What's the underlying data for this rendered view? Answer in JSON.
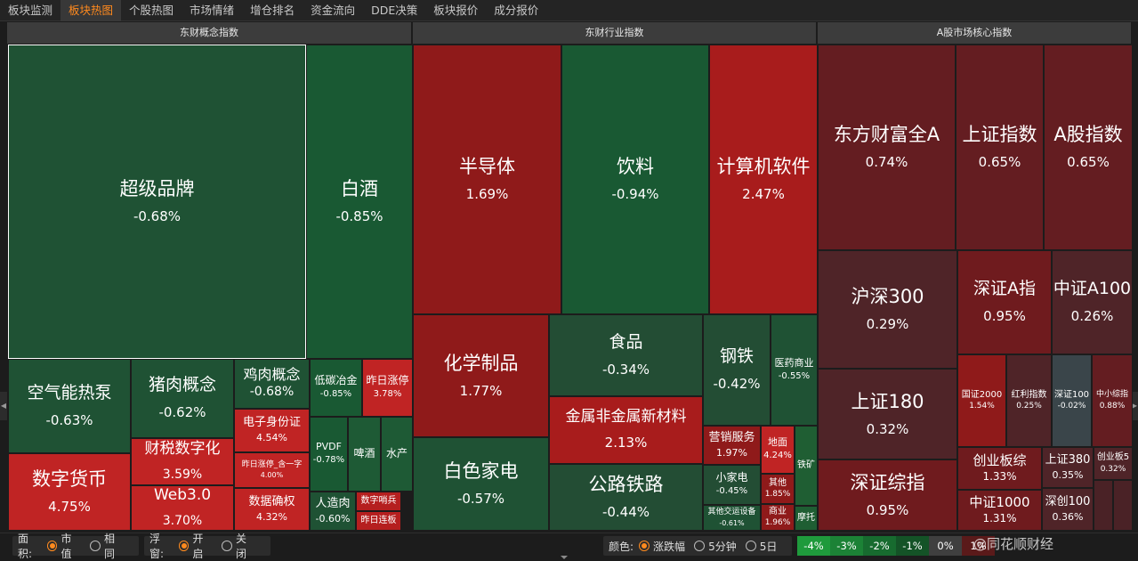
{
  "tabs": [
    {
      "label": "板块监测",
      "active": false
    },
    {
      "label": "板块热图",
      "active": true
    },
    {
      "label": "个股热图",
      "active": false
    },
    {
      "label": "市场情绪",
      "active": false
    },
    {
      "label": "增仓排名",
      "active": false
    },
    {
      "label": "资金流向",
      "active": false
    },
    {
      "label": "DDE决策",
      "active": false
    },
    {
      "label": "板块报价",
      "active": false
    },
    {
      "label": "成分报价",
      "active": false
    }
  ],
  "sections": {
    "concept": "东财概念指数",
    "industry": "东财行业指数",
    "market": "A股市场核心指数"
  },
  "tiles": {
    "concept": [
      {
        "name": "超级品牌",
        "pct": "-0.68%"
      },
      {
        "name": "白酒",
        "pct": "-0.85%"
      },
      {
        "name": "空气能热泵",
        "pct": "-0.63%"
      },
      {
        "name": "猪肉概念",
        "pct": "-0.62%"
      },
      {
        "name": "鸡肉概念",
        "pct": "-0.68%"
      },
      {
        "name": "低碳冶金",
        "pct": "-0.85%"
      },
      {
        "name": "昨日涨停",
        "pct": "3.78%"
      },
      {
        "name": "电子身份证",
        "pct": "4.54%"
      },
      {
        "name": "数字货币",
        "pct": "4.75%"
      },
      {
        "name": "财税数字化",
        "pct": "3.59%"
      },
      {
        "name": "Web3.0",
        "pct": "3.70%"
      },
      {
        "name": "昨日涨停_含一字",
        "pct": "4.00%"
      },
      {
        "name": "数据确权",
        "pct": "4.32%"
      },
      {
        "name": "PVDF",
        "pct": "-0.78%"
      },
      {
        "name": "啤酒",
        "pct": ""
      },
      {
        "name": "水产",
        "pct": ""
      },
      {
        "name": "人造肉",
        "pct": "-0.60%"
      },
      {
        "name": "数字哨兵",
        "pct": ""
      },
      {
        "name": "昨日连板",
        "pct": ""
      }
    ],
    "industry": [
      {
        "name": "半导体",
        "pct": "1.69%"
      },
      {
        "name": "饮料",
        "pct": "-0.94%"
      },
      {
        "name": "计算机软件",
        "pct": "2.47%"
      },
      {
        "name": "化学制品",
        "pct": "1.77%"
      },
      {
        "name": "食品",
        "pct": "-0.34%"
      },
      {
        "name": "钢铁",
        "pct": "-0.42%"
      },
      {
        "name": "医药商业",
        "pct": "-0.55%"
      },
      {
        "name": "金属非金属新材料",
        "pct": "2.13%"
      },
      {
        "name": "白色家电",
        "pct": "-0.57%"
      },
      {
        "name": "营销服务",
        "pct": "1.97%"
      },
      {
        "name": "地面",
        "pct": "4.24%"
      },
      {
        "name": "小家电",
        "pct": "-0.45%"
      },
      {
        "name": "其他",
        "pct": "1.85%"
      },
      {
        "name": "铁矿",
        "pct": ""
      },
      {
        "name": "公路铁路",
        "pct": "-0.44%"
      },
      {
        "name": "其他交运设备",
        "pct": "-0.61%"
      },
      {
        "name": "商业",
        "pct": "1.96%"
      },
      {
        "name": "摩托",
        "pct": ""
      }
    ],
    "market": [
      {
        "name": "东方财富全A",
        "pct": "0.74%"
      },
      {
        "name": "上证指数",
        "pct": "0.65%"
      },
      {
        "name": "A股指数",
        "pct": "0.65%"
      },
      {
        "name": "沪深300",
        "pct": "0.29%"
      },
      {
        "name": "深证A指",
        "pct": "0.95%"
      },
      {
        "name": "中证A100",
        "pct": "0.26%"
      },
      {
        "name": "上证180",
        "pct": "0.32%"
      },
      {
        "name": "国证2000",
        "pct": "1.54%"
      },
      {
        "name": "红利指数",
        "pct": "0.25%"
      },
      {
        "name": "深证100",
        "pct": "-0.02%"
      },
      {
        "name": "中小综指",
        "pct": "0.88%"
      },
      {
        "name": "创业板综",
        "pct": "1.33%"
      },
      {
        "name": "上证380",
        "pct": "0.35%"
      },
      {
        "name": "创业板5",
        "pct": "0.32%"
      },
      {
        "name": "深证综指",
        "pct": "0.95%"
      },
      {
        "name": "中证1000",
        "pct": "1.31%"
      },
      {
        "name": "深创100",
        "pct": "0.36%"
      }
    ]
  },
  "bottom": {
    "area": {
      "label": "面积:",
      "options": [
        "市值",
        "相同"
      ],
      "selected": "市值"
    },
    "float": {
      "label": "浮窗:",
      "options": [
        "开启",
        "关闭"
      ],
      "selected": "开启"
    },
    "color": {
      "label": "颜色:",
      "options": [
        "涨跌幅",
        "5分钟",
        "5日"
      ],
      "selected": "涨跌幅"
    },
    "legend": [
      {
        "label": "-4%",
        "color": "#1f9a3c"
      },
      {
        "label": "-3%",
        "color": "#1c8236"
      },
      {
        "label": "-2%",
        "color": "#176b2f"
      },
      {
        "label": "-1%",
        "color": "#145327"
      },
      {
        "label": "0%",
        "color": "#3f3f3f"
      },
      {
        "label": "1%",
        "color": "#5a1a1a"
      }
    ],
    "watermark": "@同花顺财经"
  },
  "colors": {
    "accent": "#ff8a1e",
    "up": "#b71c1c",
    "down": "#1b5e33",
    "flat": "#3f3f3f"
  }
}
